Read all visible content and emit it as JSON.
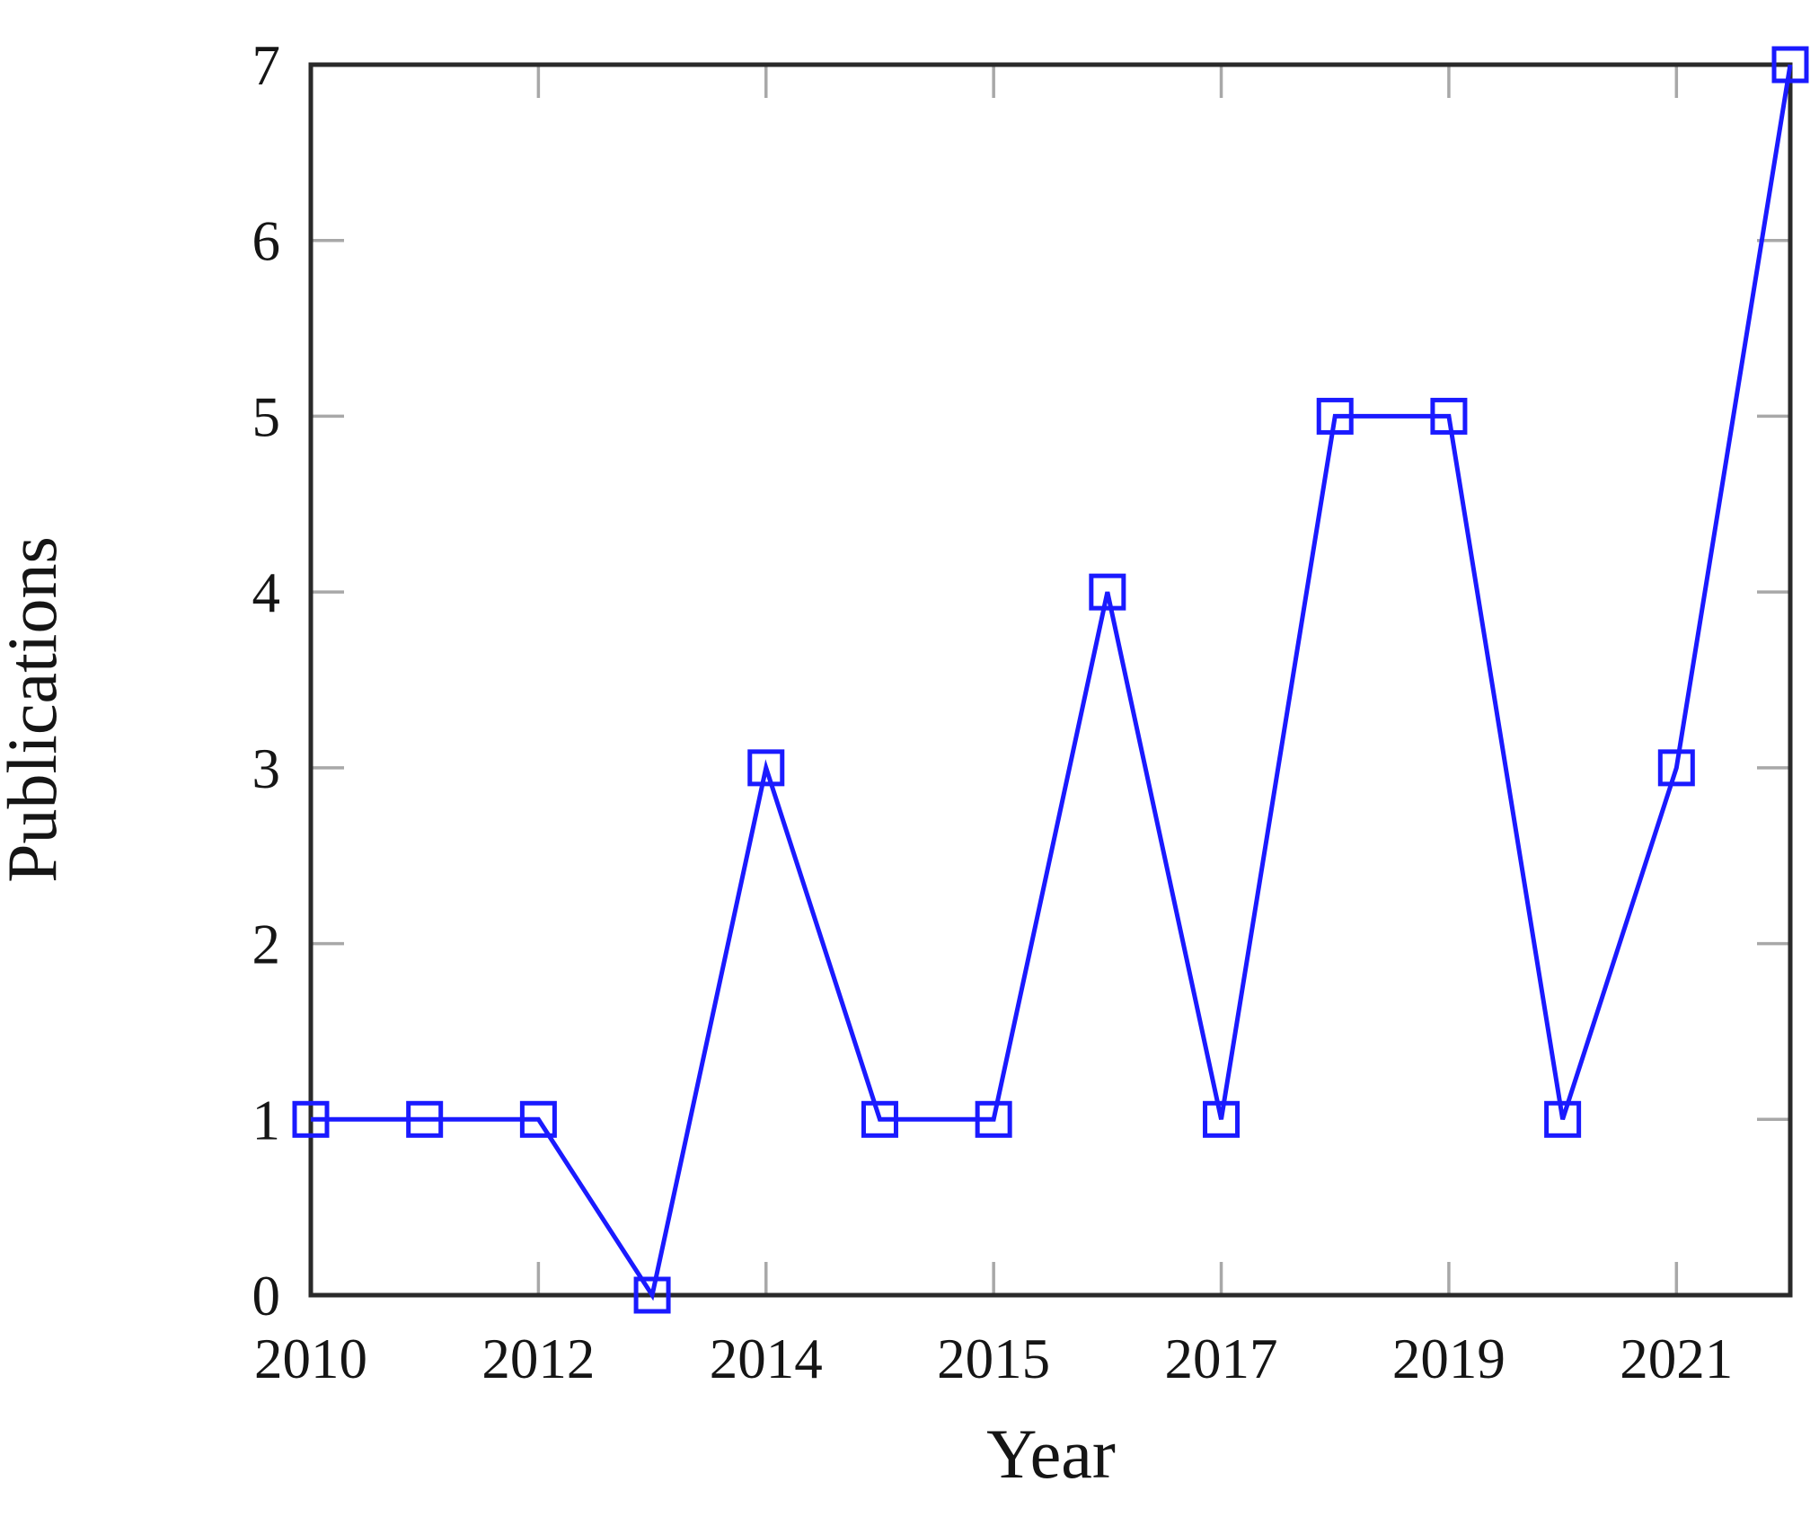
{
  "figure": {
    "background": "#ffffff"
  },
  "chart_data": {
    "type": "line",
    "title": "",
    "xlabel": "Year",
    "ylabel": "Publications",
    "x_index": [
      0,
      1,
      2,
      3,
      4,
      5,
      6,
      7,
      8,
      9,
      10,
      11,
      12,
      13
    ],
    "values": [
      1,
      1,
      1,
      0,
      3,
      1,
      1,
      4,
      1,
      5,
      5,
      1,
      3,
      7
    ],
    "x_tick_positions": [
      0,
      2,
      4,
      6,
      8,
      10,
      12
    ],
    "x_tick_labels": [
      "2010",
      "2012",
      "2014",
      "2015",
      "2017",
      "2019",
      "2021"
    ],
    "y_ticks": [
      0,
      1,
      2,
      3,
      4,
      5,
      6,
      7
    ],
    "y_tick_labels": [
      "0",
      "1",
      "2",
      "3",
      "4",
      "5",
      "6",
      "7"
    ],
    "xlim_index": [
      0,
      13
    ],
    "ylim": [
      0,
      7
    ],
    "grid": false,
    "legend": null,
    "marker": "open-square",
    "line_color": "#1a1aff",
    "marker_color": "#1a1aff",
    "axis_color": "#2a2a2a",
    "tick_color": "#a8a8a8",
    "text_color": "#151515"
  }
}
